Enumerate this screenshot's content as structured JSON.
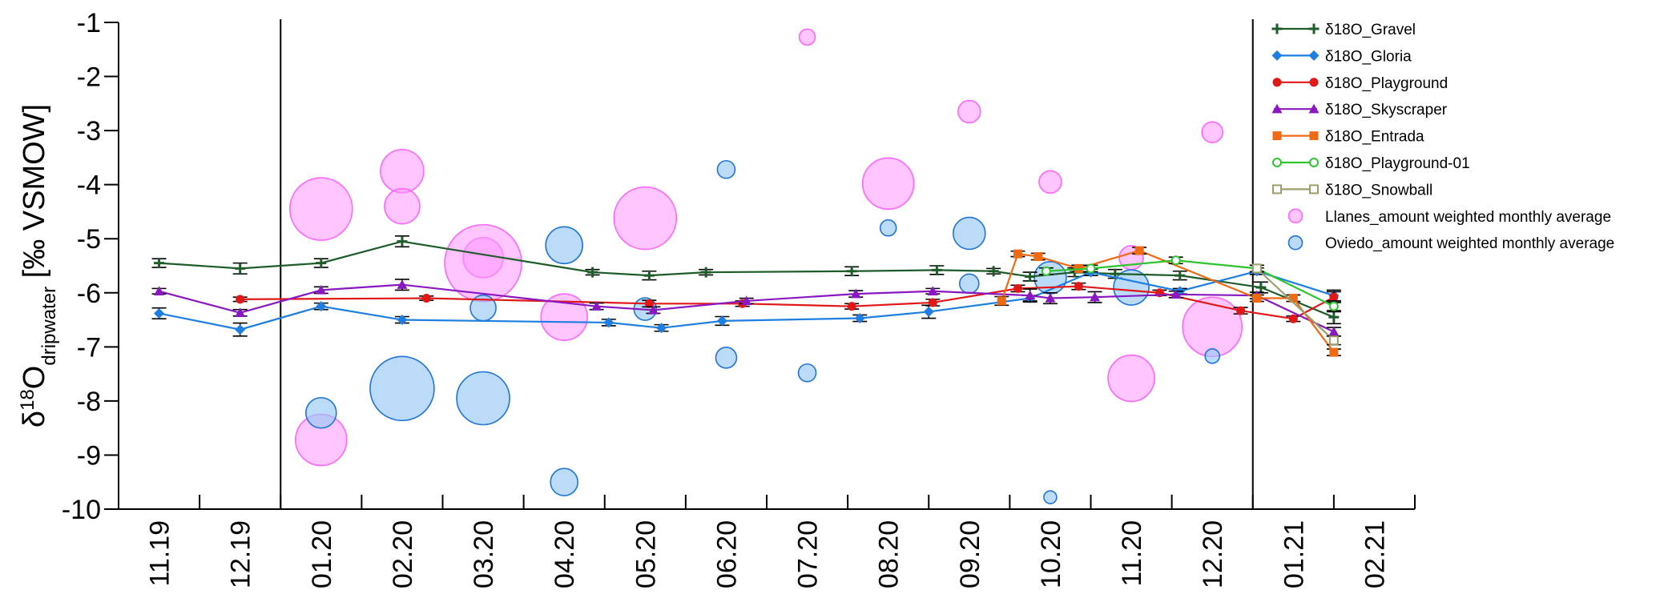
{
  "chart_data": {
    "type": "line",
    "ylabel": "δ18Odripwater [‰ VSMOW]",
    "ylabel_parts": {
      "delta": "δ",
      "sup": "18",
      "main": "O",
      "sub": "dripwater",
      "unit": " [‰ VSMOW]"
    },
    "ylim": [
      -10,
      -1
    ],
    "yticks": [
      "-1",
      "-2",
      "-3",
      "-4",
      "-5",
      "-6",
      "-7",
      "-8",
      "-9",
      "-10"
    ],
    "categories": [
      "11.19",
      "12.19",
      "01.20",
      "02.20",
      "03.20",
      "04.20",
      "05.20",
      "06.20",
      "07.20",
      "08.20",
      "09.20",
      "10.20",
      "11.20",
      "12.20",
      "01.21",
      "02.21"
    ],
    "grid": false,
    "legend_position": "top-right",
    "vertical_lines": [
      1.5,
      13.5
    ],
    "series": [
      {
        "name": "δ18O_Gravel",
        "color": "#1e5c2a",
        "marker": "plus",
        "points": [
          [
            0,
            -5.45,
            0.08
          ],
          [
            1,
            -5.55,
            0.1
          ],
          [
            2,
            -5.45,
            0.08
          ],
          [
            3,
            -5.05,
            0.1
          ],
          [
            5.35,
            -5.62,
            0.05
          ],
          [
            6.05,
            -5.68,
            0.08
          ],
          [
            6.75,
            -5.62,
            0.05
          ],
          [
            8.55,
            -5.6,
            0.08
          ],
          [
            9.6,
            -5.58,
            0.08
          ],
          [
            10.3,
            -5.6,
            0.05
          ],
          [
            10.75,
            -5.7,
            0.08
          ],
          [
            11.3,
            -5.62,
            0.08
          ],
          [
            11.8,
            -5.65,
            0.08
          ],
          [
            12.6,
            -5.68,
            0.08
          ],
          [
            13.6,
            -5.9,
            0.1
          ],
          [
            14.5,
            -6.45,
            0.12
          ]
        ]
      },
      {
        "name": "δ18O_Gloria",
        "color": "#1e7fe0",
        "marker": "diamond",
        "points": [
          [
            0,
            -6.38,
            0.1
          ],
          [
            1,
            -6.68,
            0.12
          ],
          [
            2,
            -6.25,
            0.06
          ],
          [
            3,
            -6.5,
            0.06
          ],
          [
            5.55,
            -6.55,
            0.06
          ],
          [
            6.2,
            -6.65,
            0.06
          ],
          [
            6.95,
            -6.52,
            0.08
          ],
          [
            8.65,
            -6.47,
            0.06
          ],
          [
            9.5,
            -6.35,
            0.12
          ],
          [
            10.75,
            -6.1,
            0.05
          ],
          [
            11.5,
            -5.62,
            0.06
          ],
          [
            12.6,
            -5.97,
            0.05
          ],
          [
            13.55,
            -5.6,
            0.06
          ],
          [
            14.5,
            -6.05,
            0.1
          ]
        ]
      },
      {
        "name": "δ18O_Playground",
        "color": "#e01818",
        "marker": "circle",
        "points": [
          [
            1,
            -6.12,
            0.04
          ],
          [
            3.3,
            -6.1,
            0.04
          ],
          [
            6.05,
            -6.2,
            0.06
          ],
          [
            7.2,
            -6.2,
            0.05
          ],
          [
            8.55,
            -6.25,
            0.05
          ],
          [
            9.55,
            -6.18,
            0.06
          ],
          [
            10.6,
            -5.92,
            0.06
          ],
          [
            11.35,
            -5.88,
            0.06
          ],
          [
            12.35,
            -6.0,
            0.05
          ],
          [
            13.35,
            -6.33,
            0.06
          ],
          [
            14.0,
            -6.48,
            0.05
          ],
          [
            14.5,
            -6.08,
            0.1
          ]
        ]
      },
      {
        "name": "δ18O_Skyscraper",
        "color": "#8a18c0",
        "marker": "triangle",
        "points": [
          [
            0,
            -5.97,
            0.05
          ],
          [
            1,
            -6.37,
            0.06
          ],
          [
            2,
            -5.95,
            0.06
          ],
          [
            3,
            -5.85,
            0.1
          ],
          [
            5.4,
            -6.25,
            0.06
          ],
          [
            6.1,
            -6.32,
            0.06
          ],
          [
            7.25,
            -6.15,
            0.05
          ],
          [
            8.6,
            -6.02,
            0.06
          ],
          [
            9.55,
            -5.97,
            0.05
          ],
          [
            10.75,
            -6.05,
            0.12
          ],
          [
            11.0,
            -6.1,
            0.1
          ],
          [
            11.55,
            -6.08,
            0.1
          ],
          [
            12.55,
            -6.03,
            0.06
          ],
          [
            13.55,
            -6.05,
            0.06
          ],
          [
            14.5,
            -6.72,
            0.08
          ]
        ]
      },
      {
        "name": "δ18O_Entrada",
        "color": "#f06a14",
        "marker": "square",
        "points": [
          [
            10.4,
            -6.15,
            0.08
          ],
          [
            10.6,
            -5.28,
            0.05
          ],
          [
            10.85,
            -5.33,
            0.06
          ],
          [
            11.35,
            -5.55,
            0.06
          ],
          [
            12.1,
            -5.22,
            0.06
          ],
          [
            13.55,
            -6.1,
            0.06
          ],
          [
            14.0,
            -6.1,
            0.06
          ],
          [
            14.5,
            -7.1,
            0.06
          ]
        ]
      },
      {
        "name": "δ18O_Playground-01",
        "color": "#2ec42e",
        "marker": "circle-open",
        "points": [
          [
            10.95,
            -5.6,
            0.06
          ],
          [
            11.5,
            -5.55,
            0.06
          ],
          [
            12.55,
            -5.4,
            0.06
          ],
          [
            13.55,
            -5.55,
            0.06
          ],
          [
            14.5,
            -6.25,
            0.1
          ]
        ]
      },
      {
        "name": "δ18O_Snowball",
        "color": "#9c9c6c",
        "marker": "square-open",
        "points": [
          [
            13.55,
            -5.55,
            0.06
          ],
          [
            14.5,
            -6.88,
            0.08
          ]
        ]
      }
    ],
    "bubble_series": [
      {
        "name": "Llanes_amount weighted monthly average",
        "color": "#ff66ff",
        "fill": "rgba(255,150,255,0.55)",
        "points": [
          [
            2,
            -4.45,
            39
          ],
          [
            2,
            -8.72,
            32
          ],
          [
            3,
            -3.75,
            27
          ],
          [
            3,
            -4.4,
            22
          ],
          [
            4,
            -5.35,
            25
          ],
          [
            4,
            -5.45,
            48
          ],
          [
            5,
            -6.45,
            29
          ],
          [
            6,
            -4.62,
            39
          ],
          [
            8,
            -1.27,
            10
          ],
          [
            9,
            -3.98,
            32
          ],
          [
            10,
            -2.65,
            14
          ],
          [
            11,
            -3.95,
            14
          ],
          [
            12,
            -5.35,
            15
          ],
          [
            12,
            -7.58,
            29
          ],
          [
            13,
            -3.03,
            13
          ],
          [
            13,
            -6.63,
            37
          ]
        ]
      },
      {
        "name": "Oviedo_amount weighted monthly average",
        "color": "#1f74d8",
        "fill": "rgba(150,200,245,0.65)",
        "points": [
          [
            2,
            -8.22,
            19
          ],
          [
            3,
            -7.77,
            40
          ],
          [
            4,
            -6.28,
            16
          ],
          [
            4,
            -7.95,
            33
          ],
          [
            5,
            -5.12,
            23
          ],
          [
            5,
            -9.5,
            17
          ],
          [
            6,
            -6.3,
            14
          ],
          [
            7,
            -3.72,
            11
          ],
          [
            7,
            -7.2,
            13
          ],
          [
            8,
            -7.48,
            11
          ],
          [
            9,
            -4.8,
            10
          ],
          [
            10,
            -4.9,
            20
          ],
          [
            10,
            -5.83,
            12
          ],
          [
            11,
            -5.72,
            20
          ],
          [
            11,
            -9.78,
            8
          ],
          [
            12,
            -5.9,
            22
          ],
          [
            13,
            -7.17,
            9
          ]
        ]
      }
    ]
  }
}
